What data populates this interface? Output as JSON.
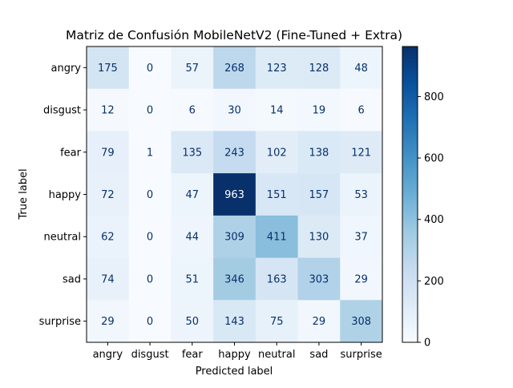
{
  "chart_data": {
    "type": "heatmap",
    "title": "Matriz de Confusión MobileNetV2 (Fine-Tuned + Extra)",
    "xlabel": "Predicted label",
    "ylabel": "True label",
    "x_categories": [
      "angry",
      "disgust",
      "fear",
      "happy",
      "neutral",
      "sad",
      "surprise"
    ],
    "y_categories": [
      "angry",
      "disgust",
      "fear",
      "happy",
      "neutral",
      "sad",
      "surprise"
    ],
    "values": [
      [
        175,
        0,
        57,
        268,
        123,
        128,
        48
      ],
      [
        12,
        0,
        6,
        30,
        14,
        19,
        6
      ],
      [
        79,
        1,
        135,
        243,
        102,
        138,
        121
      ],
      [
        72,
        0,
        47,
        963,
        151,
        157,
        53
      ],
      [
        62,
        0,
        44,
        309,
        411,
        130,
        37
      ],
      [
        74,
        0,
        51,
        346,
        163,
        303,
        29
      ],
      [
        29,
        0,
        50,
        143,
        75,
        29,
        308
      ]
    ],
    "color_range": [
      0,
      963
    ],
    "colormap": "Blues",
    "colorbar_ticks": [
      0,
      200,
      400,
      600,
      800
    ],
    "grid": false
  }
}
